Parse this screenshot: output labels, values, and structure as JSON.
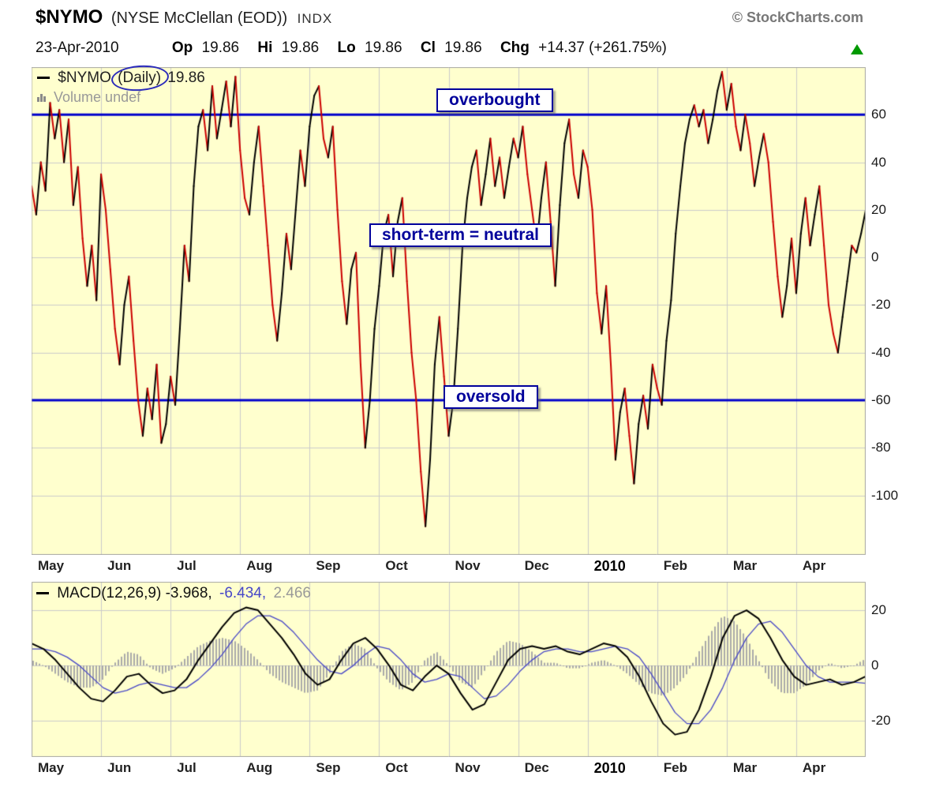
{
  "header": {
    "symbol": "$NYMO",
    "name": "(NYSE McClellan (EOD))",
    "exchange": "INDX",
    "copyright": "© StockCharts.com",
    "date": "23-Apr-2010",
    "quote": {
      "op_label": "Op",
      "op": "19.86",
      "hi_label": "Hi",
      "hi": "19.86",
      "lo_label": "Lo",
      "lo": "19.86",
      "cl_label": "Cl",
      "cl": "19.86",
      "chg_label": "Chg",
      "chg": "+14.37 (+261.75%)"
    }
  },
  "main_chart": {
    "legend": {
      "pre": "$NYMO",
      "circled": "(Daily)",
      "value": "19.86"
    },
    "volume_label": "Volume undef",
    "annotations": {
      "overbought": "overbought",
      "neutral": "short-term = neutral",
      "oversold": "oversold"
    }
  },
  "macd_panel": {
    "legend": {
      "label": "MACD(12,26,9)",
      "macd_value": "-3.968,",
      "signal_value": "-6.434,",
      "hist_value": "2.466"
    }
  },
  "colors": {
    "plot_bg": "#FFFFCE",
    "grid": "#CBCBCB",
    "plot_border": "#A8A8A8",
    "level_line_blue": "#0000CC",
    "price_up": "#000000",
    "price_down": "#CC0000",
    "macd_line": "#000000",
    "signal_line": "#4646C8",
    "histogram": "#A9A9A9",
    "annotation_navy": "#00009B",
    "arrow_green": "#009900"
  },
  "chart_data": {
    "type": "line",
    "title": "$NYMO (NYSE McClellan (EOD)) INDX",
    "date": "23-Apr-2010",
    "x": {
      "unit": "month",
      "range": [
        0,
        12
      ],
      "tick_labels": [
        "May",
        "Jun",
        "Jul",
        "Aug",
        "Sep",
        "Oct",
        "Nov",
        "Dec",
        "2010",
        "Feb",
        "Mar",
        "Apr"
      ]
    },
    "panels": [
      {
        "name": "nymo",
        "ylim": [
          -125,
          80
        ],
        "y_ticks": [
          60,
          40,
          20,
          0,
          -20,
          -40,
          -60,
          -80,
          -100
        ],
        "hlines": [
          {
            "value": 60,
            "label": "overbought"
          },
          {
            "value": -60,
            "label": "oversold"
          }
        ],
        "series": [
          {
            "name": "$NYMO (Daily)",
            "last_value": 19.86,
            "values": [
              30,
              18,
              40,
              28,
              65,
              50,
              62,
              40,
              58,
              22,
              38,
              8,
              -12,
              5,
              -18,
              35,
              20,
              -5,
              -30,
              -45,
              -20,
              -8,
              -35,
              -60,
              -75,
              -55,
              -68,
              -45,
              -78,
              -70,
              -50,
              -62,
              -30,
              5,
              -10,
              30,
              55,
              62,
              45,
              72,
              50,
              62,
              74,
              55,
              76,
              45,
              25,
              18,
              40,
              55,
              30,
              5,
              -20,
              -35,
              -15,
              10,
              -5,
              20,
              45,
              30,
              55,
              68,
              72,
              50,
              42,
              55,
              20,
              -10,
              -28,
              -5,
              2,
              -45,
              -80,
              -60,
              -30,
              -12,
              10,
              18,
              -8,
              15,
              25,
              -10,
              -40,
              -60,
              -90,
              -113,
              -85,
              -45,
              -25,
              -50,
              -75,
              -60,
              -30,
              5,
              25,
              38,
              45,
              22,
              35,
              50,
              30,
              42,
              25,
              38,
              50,
              42,
              55,
              35,
              20,
              5,
              25,
              40,
              15,
              -12,
              22,
              48,
              58,
              35,
              25,
              45,
              38,
              20,
              -15,
              -32,
              -12,
              -45,
              -85,
              -65,
              -55,
              -75,
              -95,
              -70,
              -58,
              -72,
              -45,
              -55,
              -62,
              -35,
              -18,
              10,
              30,
              48,
              58,
              64,
              55,
              62,
              48,
              58,
              70,
              78,
              62,
              73,
              55,
              45,
              60,
              48,
              30,
              42,
              52,
              40,
              15,
              -8,
              -25,
              -12,
              8,
              -15,
              10,
              25,
              5,
              18,
              30,
              5,
              -20,
              -32,
              -40,
              -25,
              -10,
              5,
              2,
              10,
              19.86
            ]
          }
        ]
      },
      {
        "name": "macd",
        "ylim": [
          -33.1,
          30.3
        ],
        "y_ticks": [
          20,
          0,
          -20
        ],
        "series": [
          {
            "name": "MACD(12,26,9)",
            "last_value": -3.968,
            "values": [
              8,
              6,
              2,
              -3,
              -8,
              -12,
              -13,
              -9,
              -4,
              -3,
              -7,
              -10,
              -9,
              -5,
              2,
              8,
              14,
              19,
              21,
              20,
              15,
              10,
              4,
              -3,
              -7,
              -5,
              2,
              8,
              10,
              6,
              0,
              -7,
              -9,
              -4,
              0,
              -3,
              -10,
              -16,
              -14,
              -6,
              2,
              6,
              7,
              6,
              7,
              5,
              4,
              6,
              8,
              7,
              3,
              -4,
              -13,
              -21,
              -25,
              -24,
              -16,
              -4,
              10,
              18,
              20,
              17,
              10,
              2,
              -4,
              -7,
              -6,
              -5,
              -7,
              -6,
              -3.968
            ]
          },
          {
            "name": "Signal",
            "last_value": -6.434,
            "values": [
              6,
              6,
              5,
              3,
              0,
              -4,
              -8,
              -10,
              -9,
              -7,
              -6,
              -7,
              -8,
              -8,
              -5,
              -1,
              4,
              10,
              15,
              18,
              18,
              16,
              12,
              7,
              2,
              -2,
              -3,
              0,
              4,
              7,
              6,
              2,
              -3,
              -6,
              -5,
              -3,
              -4,
              -8,
              -12,
              -11,
              -7,
              -2,
              2,
              5,
              6,
              6,
              5,
              5,
              6,
              7,
              6,
              3,
              -3,
              -10,
              -17,
              -21,
              -21,
              -16,
              -8,
              2,
              10,
              15,
              16,
              12,
              6,
              0,
              -4,
              -6,
              -6,
              -6,
              -6.434
            ]
          },
          {
            "name": "Histogram",
            "last_value": 2.466,
            "note": "macd minus signal"
          }
        ]
      }
    ]
  }
}
